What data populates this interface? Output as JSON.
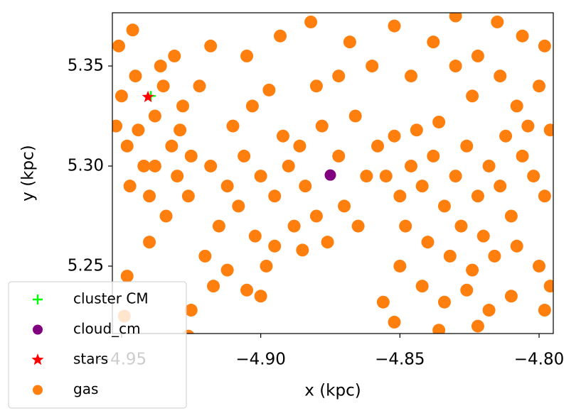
{
  "chart_data": {
    "type": "scatter",
    "xlabel": "x (kpc)",
    "ylabel": "y (kpc)",
    "xlim": [
      -4.9533,
      -4.7949
    ],
    "ylim": [
      5.2163,
      5.3766
    ],
    "xticks": [
      {
        "value": -4.95,
        "label": "−4.95"
      },
      {
        "value": -4.9,
        "label": "−4.90"
      },
      {
        "value": -4.85,
        "label": "−4.85"
      },
      {
        "value": -4.8,
        "label": "−4.80"
      }
    ],
    "yticks": [
      5.25,
      {
        "value": 5.3,
        "label": "5.30"
      },
      5.35
    ],
    "legend": "lower left",
    "series": [
      {
        "name": "gas",
        "color": "#ff7f0e",
        "marker": "circle",
        "x": [
          -4.952,
          -4.948,
          -4.945,
          -4.942,
          -4.938,
          -4.935,
          -4.932,
          -4.947,
          -4.94,
          -4.93,
          -4.95,
          -4.936,
          -4.928,
          -4.925,
          -4.944,
          -4.934,
          -4.926,
          -4.951,
          -4.946,
          -4.931,
          -4.922,
          -4.94,
          -4.948,
          -4.949,
          -4.938,
          -4.929,
          -4.918,
          -4.912,
          -4.906,
          -4.9,
          -4.895,
          -4.89,
          -4.884,
          -4.88,
          -4.87,
          -4.865,
          -4.915,
          -4.908,
          -4.902,
          -4.895,
          -4.888,
          -4.91,
          -4.903,
          -4.897,
          -4.892,
          -4.886,
          -4.878,
          -4.872,
          -4.862,
          -4.858,
          -4.866,
          -4.92,
          -4.912,
          -4.905,
          -4.898,
          -4.885,
          -4.876,
          -4.918,
          -4.905,
          -4.893,
          -4.88,
          -4.872,
          -4.868,
          -4.86,
          -4.882,
          -4.925,
          -4.917,
          -4.9,
          -4.926,
          -4.855,
          -4.85,
          -4.846,
          -4.842,
          -4.838,
          -4.834,
          -4.83,
          -4.826,
          -4.822,
          -4.818,
          -4.814,
          -4.81,
          -4.806,
          -4.802,
          -4.798,
          -4.852,
          -4.844,
          -4.836,
          -4.828,
          -4.82,
          -4.812,
          -4.804,
          -4.848,
          -4.84,
          -4.832,
          -4.824,
          -4.816,
          -4.808,
          -4.8,
          -4.796,
          -4.85,
          -4.842,
          -4.834,
          -4.826,
          -4.818,
          -4.81,
          -4.856,
          -4.852,
          -4.836,
          -4.822,
          -4.798,
          -4.846,
          -4.838,
          -4.83,
          -4.822,
          -4.814,
          -4.806,
          -4.8,
          -4.852,
          -4.83,
          -4.815,
          -4.798,
          -4.824,
          -4.808,
          -4.796
        ],
        "y": [
          5.32,
          5.31,
          5.345,
          5.3,
          5.325,
          5.34,
          5.31,
          5.29,
          5.285,
          5.295,
          5.335,
          5.35,
          5.33,
          5.305,
          5.318,
          5.275,
          5.285,
          5.36,
          5.368,
          5.355,
          5.34,
          5.262,
          5.245,
          5.225,
          5.3,
          5.318,
          5.3,
          5.29,
          5.305,
          5.295,
          5.285,
          5.3,
          5.29,
          5.275,
          5.28,
          5.27,
          5.27,
          5.28,
          5.265,
          5.26,
          5.27,
          5.32,
          5.33,
          5.338,
          5.315,
          5.31,
          5.32,
          5.305,
          5.295,
          5.31,
          5.325,
          5.255,
          5.248,
          5.238,
          5.25,
          5.258,
          5.262,
          5.36,
          5.355,
          5.365,
          5.34,
          5.345,
          5.362,
          5.35,
          5.372,
          5.228,
          5.24,
          5.235,
          5.215,
          5.295,
          5.285,
          5.3,
          5.29,
          5.305,
          5.28,
          5.295,
          5.31,
          5.285,
          5.3,
          5.29,
          5.275,
          5.305,
          5.295,
          5.285,
          5.315,
          5.318,
          5.322,
          5.27,
          5.265,
          5.315,
          5.32,
          5.27,
          5.262,
          5.255,
          5.248,
          5.255,
          5.26,
          5.25,
          5.24,
          5.25,
          5.24,
          5.232,
          5.238,
          5.228,
          5.235,
          5.232,
          5.222,
          5.218,
          5.22,
          5.228,
          5.345,
          5.362,
          5.35,
          5.355,
          5.345,
          5.365,
          5.34,
          5.37,
          5.375,
          5.372,
          5.36,
          5.335,
          5.33,
          5.318
        ]
      },
      {
        "name": "cluster CM",
        "color": "#00ff00",
        "marker": "plus",
        "x": [
          -4.9395
        ],
        "y": [
          5.335
        ]
      },
      {
        "name": "cloud_cm",
        "color": "#800080",
        "marker": "circle",
        "x": [
          -4.875
        ],
        "y": [
          5.2955
        ]
      },
      {
        "name": "stars",
        "color": "#ff0000",
        "marker": "star",
        "x": [
          -4.9405
        ],
        "y": [
          5.3345
        ]
      }
    ],
    "legend_order": [
      1,
      2,
      3,
      0
    ]
  }
}
